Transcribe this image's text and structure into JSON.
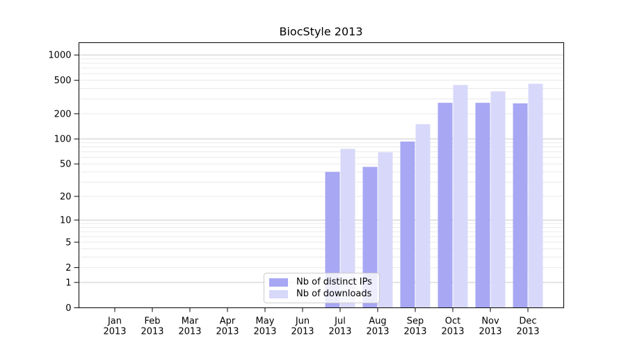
{
  "page": {
    "background_color": "#ffffff"
  },
  "chart_data": {
    "type": "bar",
    "title": "BiocStyle 2013",
    "xlabel": "",
    "ylabel": "",
    "categories": [
      {
        "month": "Jan",
        "year": "2013"
      },
      {
        "month": "Feb",
        "year": "2013"
      },
      {
        "month": "Mar",
        "year": "2013"
      },
      {
        "month": "Apr",
        "year": "2013"
      },
      {
        "month": "May",
        "year": "2013"
      },
      {
        "month": "Jun",
        "year": "2013"
      },
      {
        "month": "Jul",
        "year": "2013"
      },
      {
        "month": "Aug",
        "year": "2013"
      },
      {
        "month": "Sep",
        "year": "2013"
      },
      {
        "month": "Oct",
        "year": "2013"
      },
      {
        "month": "Nov",
        "year": "2013"
      },
      {
        "month": "Dec",
        "year": "2013"
      }
    ],
    "series": [
      {
        "name": "Nb of distinct IPs",
        "color": "#a7a7f4",
        "values": [
          0,
          0,
          0,
          0,
          0,
          0,
          40,
          46,
          93,
          270,
          270,
          266
        ]
      },
      {
        "name": "Nb of downloads",
        "color": "#d8d8fa",
        "values": [
          0,
          0,
          0,
          0,
          0,
          0,
          76,
          69,
          150,
          440,
          370,
          455
        ]
      }
    ],
    "yscale": "log1p",
    "yticks": [
      0,
      1,
      2,
      5,
      10,
      20,
      50,
      100,
      200,
      500,
      1000
    ],
    "ylim": [
      0,
      1400
    ],
    "grid": {
      "enabled": true,
      "major_at": [
        1,
        10,
        100,
        1000
      ],
      "major_color": "#c8c8c8",
      "minor_color": "#e9e9e9"
    },
    "legend_position": "lower center",
    "axis_color": "#000000",
    "text_color": "#000000"
  }
}
